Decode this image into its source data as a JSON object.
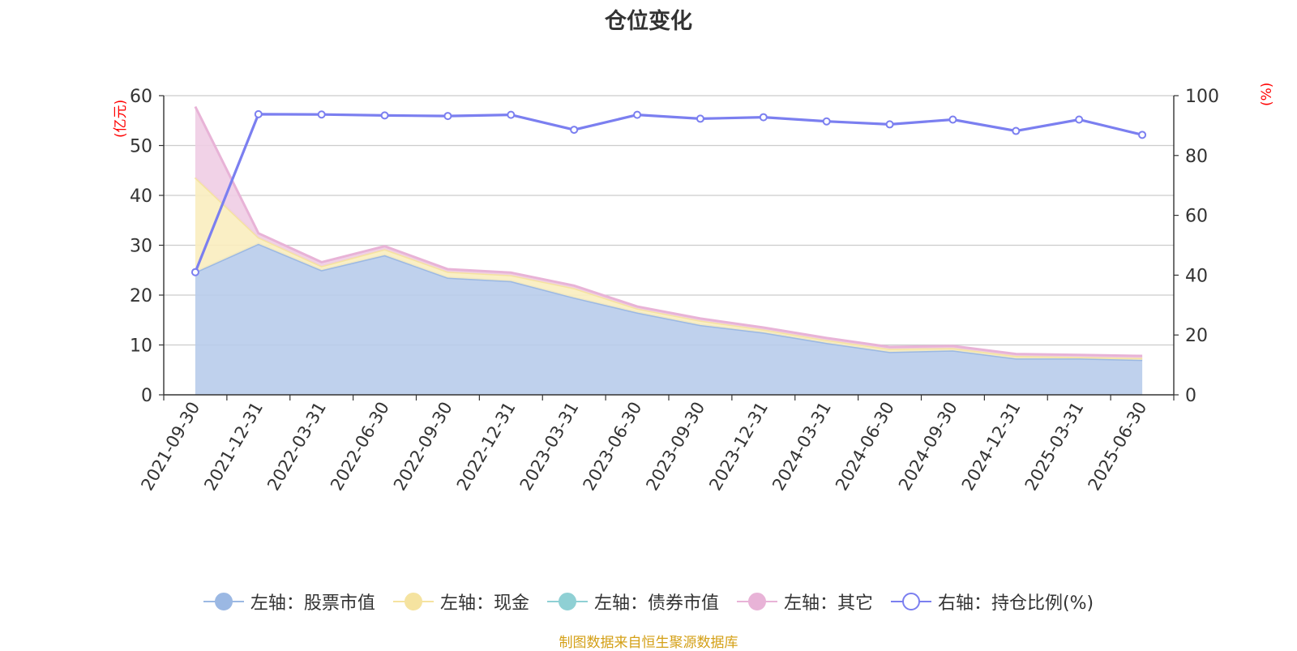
{
  "chart_data": {
    "type": "area",
    "title": "仓位变化",
    "left_axis": {
      "unit": "(亿元)",
      "ylim": [
        0,
        60
      ],
      "ticks": [
        0,
        10,
        20,
        30,
        40,
        50,
        60
      ]
    },
    "right_axis": {
      "unit": "(%)",
      "ylim": [
        0,
        100
      ],
      "ticks": [
        0,
        20,
        40,
        60,
        80,
        100
      ]
    },
    "categories": [
      "2021-09-30",
      "2021-12-31",
      "2022-03-31",
      "2022-06-30",
      "2022-09-30",
      "2022-12-31",
      "2023-03-31",
      "2023-06-30",
      "2023-09-30",
      "2023-12-31",
      "2024-03-31",
      "2024-06-30",
      "2024-09-30",
      "2024-12-31",
      "2025-03-31",
      "2025-06-30"
    ],
    "grid": true,
    "legend_position": "bottom",
    "series": [
      {
        "name": "左轴：股票市值",
        "axis": "left",
        "stack": true,
        "color": "#9bb8e3",
        "fill": "#b8cceb",
        "values": [
          24.6,
          30.3,
          25.0,
          28.0,
          23.5,
          22.8,
          19.5,
          16.5,
          14.0,
          12.5,
          10.4,
          8.6,
          8.9,
          7.3,
          7.3,
          7.0
        ]
      },
      {
        "name": "左轴：现金",
        "axis": "left",
        "stack": true,
        "color": "#f5e3a0",
        "fill": "#f9edbf",
        "values": [
          19.0,
          1.3,
          0.8,
          1.2,
          1.2,
          1.2,
          1.9,
          0.8,
          0.9,
          0.6,
          0.6,
          0.6,
          0.5,
          0.5,
          0.3,
          0.4
        ]
      },
      {
        "name": "左轴：债券市值",
        "axis": "left",
        "stack": true,
        "color": "#8fd0d4",
        "fill": "#b6e2e4",
        "values": [
          0,
          0,
          0,
          0,
          0,
          0,
          0,
          0,
          0,
          0,
          0,
          0,
          0,
          0,
          0,
          0
        ]
      },
      {
        "name": "左轴：其它",
        "axis": "left",
        "stack": true,
        "color": "#e8b3d7",
        "fill": "#efcde4",
        "values": [
          14.2,
          0.8,
          0.8,
          0.6,
          0.5,
          0.5,
          0.5,
          0.4,
          0.4,
          0.4,
          0.4,
          0.4,
          0.4,
          0.4,
          0.4,
          0.4
        ]
      },
      {
        "name": "右轴：持仓比例(%)",
        "axis": "right",
        "stack": false,
        "color": "#7b7ff0",
        "line_only": true,
        "values": [
          41.0,
          93.8,
          93.7,
          93.4,
          93.2,
          93.6,
          88.6,
          93.6,
          92.3,
          92.8,
          91.4,
          90.4,
          92.0,
          88.2,
          92.0,
          86.9
        ]
      }
    ],
    "source": "制图数据来自恒生聚源数据库"
  }
}
